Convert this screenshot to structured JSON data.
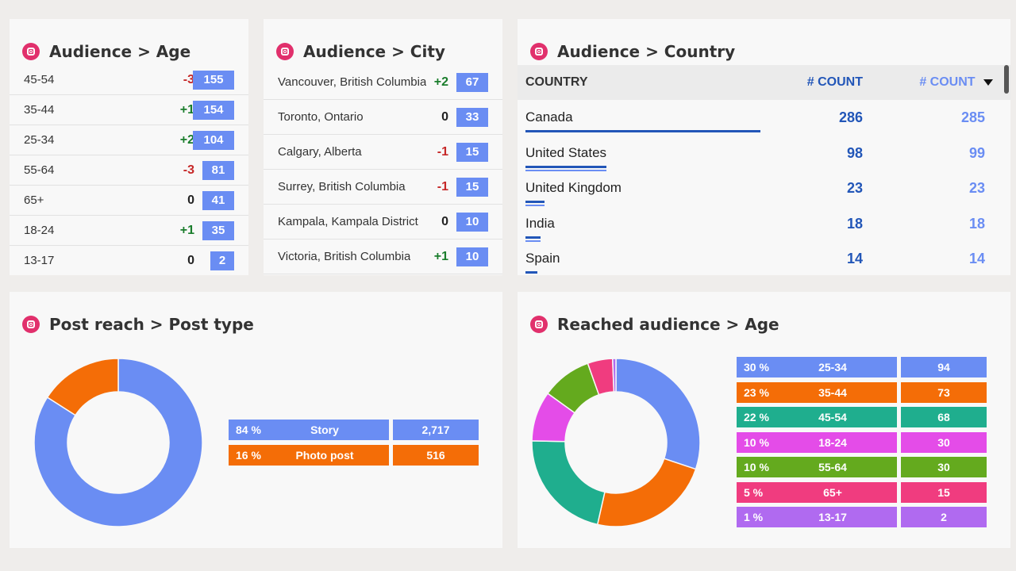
{
  "age": {
    "title": "Audience > Age",
    "rows": [
      {
        "label": "45-54",
        "delta": "-3",
        "value": "155"
      },
      {
        "label": "35-44",
        "delta": "+1",
        "value": "154"
      },
      {
        "label": "25-34",
        "delta": "+2",
        "value": "104"
      },
      {
        "label": "55-64",
        "delta": "-3",
        "value": "81"
      },
      {
        "label": "65+",
        "delta": "0",
        "value": "41"
      },
      {
        "label": "18-24",
        "delta": "+1",
        "value": "35"
      },
      {
        "label": "13-17",
        "delta": "0",
        "value": "2"
      }
    ]
  },
  "city": {
    "title": "Audience > City",
    "rows": [
      {
        "label": "Vancouver, British Columbia",
        "delta": "+2",
        "value": "67"
      },
      {
        "label": "Toronto, Ontario",
        "delta": "0",
        "value": "33"
      },
      {
        "label": "Calgary, Alberta",
        "delta": "-1",
        "value": "15"
      },
      {
        "label": "Surrey, British Columbia",
        "delta": "-1",
        "value": "15"
      },
      {
        "label": "Kampala, Kampala District",
        "delta": "0",
        "value": "10"
      },
      {
        "label": "Victoria, British Columbia",
        "delta": "+1",
        "value": "10"
      }
    ]
  },
  "country": {
    "title": "Audience > Country",
    "col_country": "COUNTRY",
    "col_count1": "# COUNT",
    "col_count2": "# COUNT",
    "rows": [
      {
        "name": "Canada",
        "count": "286",
        "count_prev": "285",
        "share": 1.0
      },
      {
        "name": "United States",
        "count": "98",
        "count_prev": "99",
        "share": 0.343
      },
      {
        "name": "United Kingdom",
        "count": "23",
        "count_prev": "23",
        "share": 0.08
      },
      {
        "name": "India",
        "count": "18",
        "count_prev": "18",
        "share": 0.063
      },
      {
        "name": "Spain",
        "count": "14",
        "count_prev": "14",
        "share": 0.049
      }
    ]
  },
  "post_reach": {
    "title": "Post reach > Post type",
    "legend": [
      {
        "pct": "84 %",
        "label": "Story",
        "value": "2,717",
        "color": "#6a8df3"
      },
      {
        "pct": "16 %",
        "label": "Photo post",
        "value": "516",
        "color": "#f46d07"
      }
    ]
  },
  "reached_age": {
    "title": "Reached audience > Age",
    "legend": [
      {
        "pct": "30 %",
        "label": "25-34",
        "value": "94",
        "color": "#6a8df3"
      },
      {
        "pct": "23 %",
        "label": "35-44",
        "value": "73",
        "color": "#f46d07"
      },
      {
        "pct": "22 %",
        "label": "45-54",
        "value": "68",
        "color": "#1fae8e"
      },
      {
        "pct": "10 %",
        "label": "18-24",
        "value": "30",
        "color": "#e44ce8"
      },
      {
        "pct": "10 %",
        "label": "55-64",
        "value": "30",
        "color": "#64aa1e"
      },
      {
        "pct": "5 %",
        "label": "65+",
        "value": "15",
        "color": "#f03c7f"
      },
      {
        "pct": "1 %",
        "label": "13-17",
        "value": "2",
        "color": "#b06af0"
      }
    ]
  },
  "chart_data": [
    {
      "type": "pie",
      "categories": [
        "Story",
        "Photo post"
      ],
      "values": [
        2717,
        516
      ]
    },
    {
      "type": "pie",
      "categories": [
        "25-34",
        "35-44",
        "45-54",
        "18-24",
        "55-64",
        "65+",
        "13-17"
      ],
      "values": [
        94,
        73,
        68,
        30,
        30,
        15,
        2
      ]
    }
  ]
}
